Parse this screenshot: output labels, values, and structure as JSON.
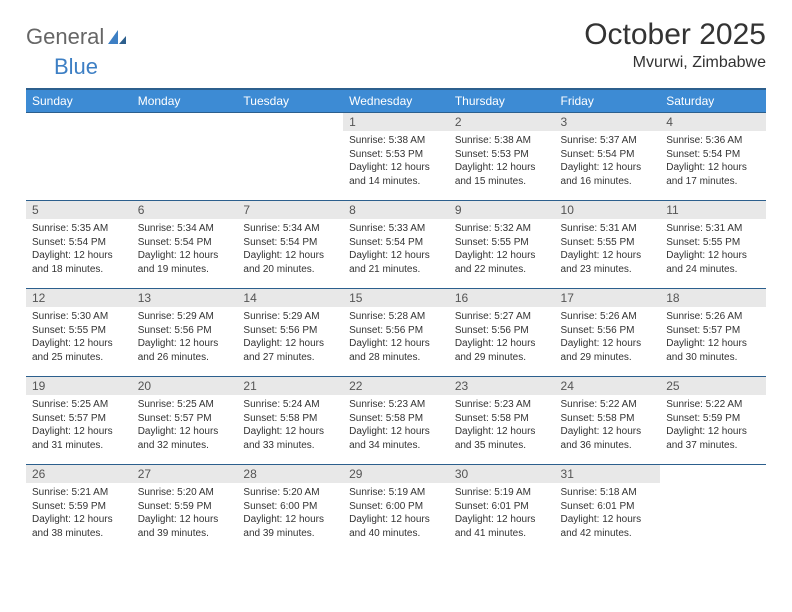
{
  "logo": {
    "part1": "General",
    "part2": "Blue"
  },
  "title": "October 2025",
  "location": "Mvurwi, Zimbabwe",
  "columns": [
    "Sunday",
    "Monday",
    "Tuesday",
    "Wednesday",
    "Thursday",
    "Friday",
    "Saturday"
  ],
  "colors": {
    "header_bg": "#3d8bd4",
    "header_border": "#2c5f8d",
    "daynum_bg": "#e8e8e8",
    "logo_accent": "#3d7fc4"
  },
  "weeks": [
    [
      {
        "n": "",
        "sr": "",
        "ss": "",
        "dl": ""
      },
      {
        "n": "",
        "sr": "",
        "ss": "",
        "dl": ""
      },
      {
        "n": "",
        "sr": "",
        "ss": "",
        "dl": ""
      },
      {
        "n": "1",
        "sr": "Sunrise: 5:38 AM",
        "ss": "Sunset: 5:53 PM",
        "dl": "Daylight: 12 hours and 14 minutes."
      },
      {
        "n": "2",
        "sr": "Sunrise: 5:38 AM",
        "ss": "Sunset: 5:53 PM",
        "dl": "Daylight: 12 hours and 15 minutes."
      },
      {
        "n": "3",
        "sr": "Sunrise: 5:37 AM",
        "ss": "Sunset: 5:54 PM",
        "dl": "Daylight: 12 hours and 16 minutes."
      },
      {
        "n": "4",
        "sr": "Sunrise: 5:36 AM",
        "ss": "Sunset: 5:54 PM",
        "dl": "Daylight: 12 hours and 17 minutes."
      }
    ],
    [
      {
        "n": "5",
        "sr": "Sunrise: 5:35 AM",
        "ss": "Sunset: 5:54 PM",
        "dl": "Daylight: 12 hours and 18 minutes."
      },
      {
        "n": "6",
        "sr": "Sunrise: 5:34 AM",
        "ss": "Sunset: 5:54 PM",
        "dl": "Daylight: 12 hours and 19 minutes."
      },
      {
        "n": "7",
        "sr": "Sunrise: 5:34 AM",
        "ss": "Sunset: 5:54 PM",
        "dl": "Daylight: 12 hours and 20 minutes."
      },
      {
        "n": "8",
        "sr": "Sunrise: 5:33 AM",
        "ss": "Sunset: 5:54 PM",
        "dl": "Daylight: 12 hours and 21 minutes."
      },
      {
        "n": "9",
        "sr": "Sunrise: 5:32 AM",
        "ss": "Sunset: 5:55 PM",
        "dl": "Daylight: 12 hours and 22 minutes."
      },
      {
        "n": "10",
        "sr": "Sunrise: 5:31 AM",
        "ss": "Sunset: 5:55 PM",
        "dl": "Daylight: 12 hours and 23 minutes."
      },
      {
        "n": "11",
        "sr": "Sunrise: 5:31 AM",
        "ss": "Sunset: 5:55 PM",
        "dl": "Daylight: 12 hours and 24 minutes."
      }
    ],
    [
      {
        "n": "12",
        "sr": "Sunrise: 5:30 AM",
        "ss": "Sunset: 5:55 PM",
        "dl": "Daylight: 12 hours and 25 minutes."
      },
      {
        "n": "13",
        "sr": "Sunrise: 5:29 AM",
        "ss": "Sunset: 5:56 PM",
        "dl": "Daylight: 12 hours and 26 minutes."
      },
      {
        "n": "14",
        "sr": "Sunrise: 5:29 AM",
        "ss": "Sunset: 5:56 PM",
        "dl": "Daylight: 12 hours and 27 minutes."
      },
      {
        "n": "15",
        "sr": "Sunrise: 5:28 AM",
        "ss": "Sunset: 5:56 PM",
        "dl": "Daylight: 12 hours and 28 minutes."
      },
      {
        "n": "16",
        "sr": "Sunrise: 5:27 AM",
        "ss": "Sunset: 5:56 PM",
        "dl": "Daylight: 12 hours and 29 minutes."
      },
      {
        "n": "17",
        "sr": "Sunrise: 5:26 AM",
        "ss": "Sunset: 5:56 PM",
        "dl": "Daylight: 12 hours and 29 minutes."
      },
      {
        "n": "18",
        "sr": "Sunrise: 5:26 AM",
        "ss": "Sunset: 5:57 PM",
        "dl": "Daylight: 12 hours and 30 minutes."
      }
    ],
    [
      {
        "n": "19",
        "sr": "Sunrise: 5:25 AM",
        "ss": "Sunset: 5:57 PM",
        "dl": "Daylight: 12 hours and 31 minutes."
      },
      {
        "n": "20",
        "sr": "Sunrise: 5:25 AM",
        "ss": "Sunset: 5:57 PM",
        "dl": "Daylight: 12 hours and 32 minutes."
      },
      {
        "n": "21",
        "sr": "Sunrise: 5:24 AM",
        "ss": "Sunset: 5:58 PM",
        "dl": "Daylight: 12 hours and 33 minutes."
      },
      {
        "n": "22",
        "sr": "Sunrise: 5:23 AM",
        "ss": "Sunset: 5:58 PM",
        "dl": "Daylight: 12 hours and 34 minutes."
      },
      {
        "n": "23",
        "sr": "Sunrise: 5:23 AM",
        "ss": "Sunset: 5:58 PM",
        "dl": "Daylight: 12 hours and 35 minutes."
      },
      {
        "n": "24",
        "sr": "Sunrise: 5:22 AM",
        "ss": "Sunset: 5:58 PM",
        "dl": "Daylight: 12 hours and 36 minutes."
      },
      {
        "n": "25",
        "sr": "Sunrise: 5:22 AM",
        "ss": "Sunset: 5:59 PM",
        "dl": "Daylight: 12 hours and 37 minutes."
      }
    ],
    [
      {
        "n": "26",
        "sr": "Sunrise: 5:21 AM",
        "ss": "Sunset: 5:59 PM",
        "dl": "Daylight: 12 hours and 38 minutes."
      },
      {
        "n": "27",
        "sr": "Sunrise: 5:20 AM",
        "ss": "Sunset: 5:59 PM",
        "dl": "Daylight: 12 hours and 39 minutes."
      },
      {
        "n": "28",
        "sr": "Sunrise: 5:20 AM",
        "ss": "Sunset: 6:00 PM",
        "dl": "Daylight: 12 hours and 39 minutes."
      },
      {
        "n": "29",
        "sr": "Sunrise: 5:19 AM",
        "ss": "Sunset: 6:00 PM",
        "dl": "Daylight: 12 hours and 40 minutes."
      },
      {
        "n": "30",
        "sr": "Sunrise: 5:19 AM",
        "ss": "Sunset: 6:01 PM",
        "dl": "Daylight: 12 hours and 41 minutes."
      },
      {
        "n": "31",
        "sr": "Sunrise: 5:18 AM",
        "ss": "Sunset: 6:01 PM",
        "dl": "Daylight: 12 hours and 42 minutes."
      },
      {
        "n": "",
        "sr": "",
        "ss": "",
        "dl": ""
      }
    ]
  ]
}
